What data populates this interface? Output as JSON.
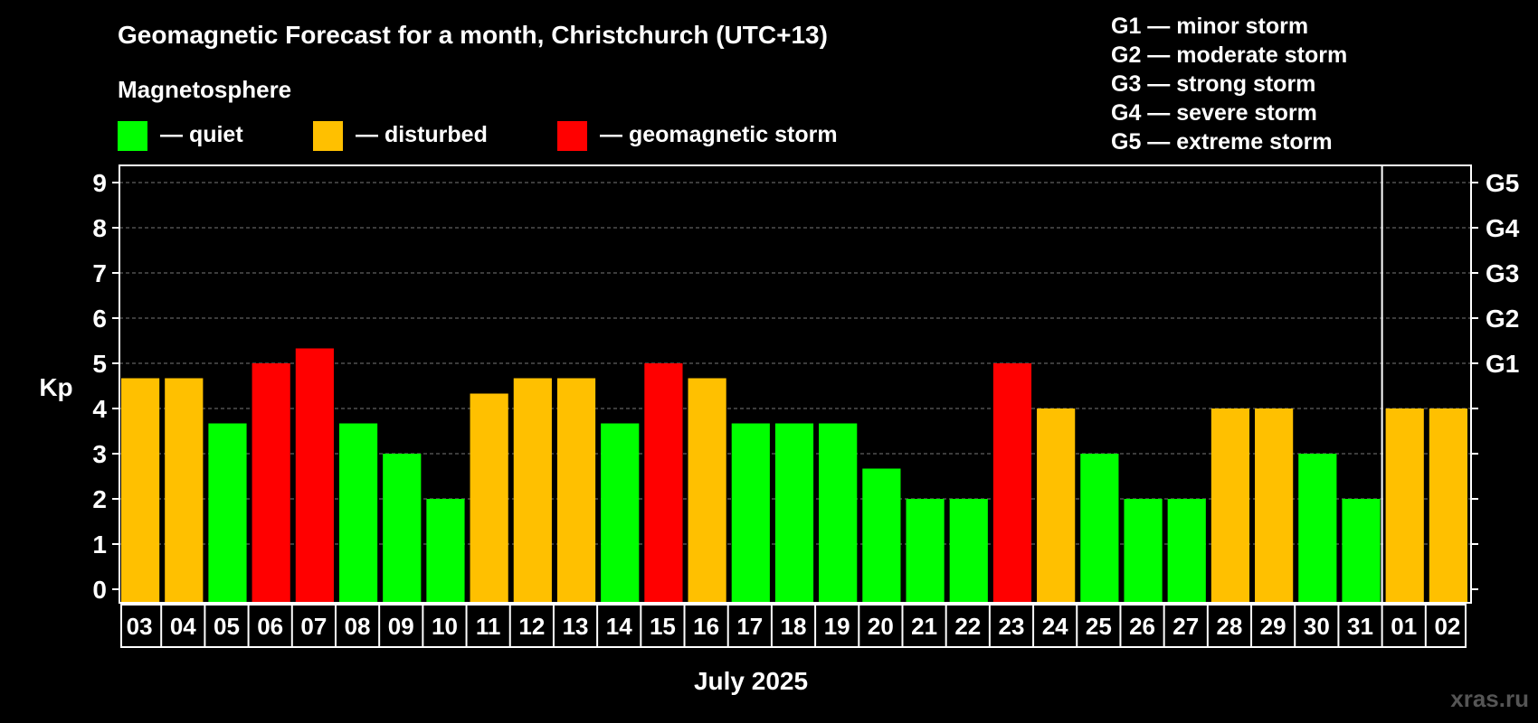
{
  "chart_data": {
    "type": "bar",
    "title": "Geomagnetic Forecast for a month, Christchurch (UTC+13)",
    "legend_title": "Magnetosphere",
    "legend": [
      {
        "key": "quiet",
        "label": "— quiet",
        "color": "#00ff00"
      },
      {
        "key": "disturbed",
        "label": "— disturbed",
        "color": "#ffc000"
      },
      {
        "key": "storm",
        "label": "— geomagnetic storm",
        "color": "#ff0000"
      }
    ],
    "storm_scale": [
      "G1 — minor storm",
      "G2 — moderate storm",
      "G3 — strong storm",
      "G4 — severe storm",
      "G5 — extreme storm"
    ],
    "ylabel": "Kp",
    "xlabel": "July 2025",
    "ylim": [
      0,
      9
    ],
    "y_ticks": [
      "0",
      "1",
      "2",
      "3",
      "4",
      "5",
      "6",
      "7",
      "8",
      "9"
    ],
    "right_ticks": [
      {
        "kp": 5,
        "label": "G1"
      },
      {
        "kp": 6,
        "label": "G2"
      },
      {
        "kp": 7,
        "label": "G3"
      },
      {
        "kp": 8,
        "label": "G4"
      },
      {
        "kp": 9,
        "label": "G5"
      }
    ],
    "grid": true,
    "month_break_after": "31",
    "categories": [
      "03",
      "04",
      "05",
      "06",
      "07",
      "08",
      "09",
      "10",
      "11",
      "12",
      "13",
      "14",
      "15",
      "16",
      "17",
      "18",
      "19",
      "20",
      "21",
      "22",
      "23",
      "24",
      "25",
      "26",
      "27",
      "28",
      "29",
      "30",
      "31",
      "01",
      "02"
    ],
    "values": [
      4.67,
      4.67,
      3.67,
      5,
      5.33,
      3.67,
      3,
      2,
      4.33,
      4.67,
      4.67,
      3.67,
      5,
      4.67,
      3.67,
      3.67,
      3.67,
      2.67,
      2,
      2,
      5,
      4,
      3,
      2,
      2,
      4,
      4,
      3,
      2,
      4,
      4
    ],
    "levels": [
      "disturbed",
      "disturbed",
      "quiet",
      "storm",
      "storm",
      "quiet",
      "quiet",
      "quiet",
      "disturbed",
      "disturbed",
      "disturbed",
      "quiet",
      "storm",
      "disturbed",
      "quiet",
      "quiet",
      "quiet",
      "quiet",
      "quiet",
      "quiet",
      "storm",
      "disturbed",
      "quiet",
      "quiet",
      "quiet",
      "disturbed",
      "disturbed",
      "quiet",
      "quiet",
      "disturbed",
      "disturbed"
    ]
  },
  "watermark": "xras.ru"
}
